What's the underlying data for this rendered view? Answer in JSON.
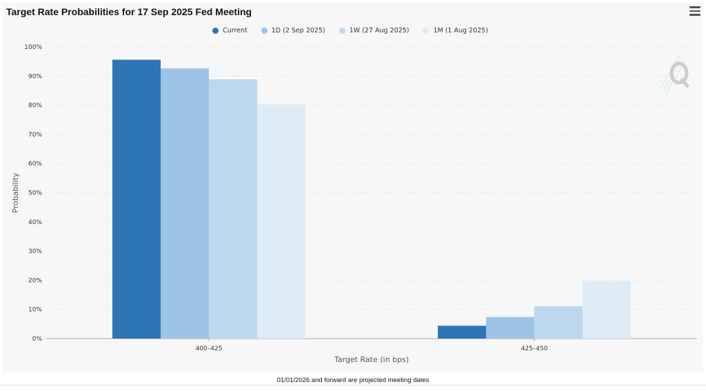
{
  "title": "Target Rate Probabilities for 17 Sep 2025 Fed Meeting",
  "footer": "01/01/2026 and forward are projected meeting dates",
  "icons": {
    "menu": "hamburger-menu-icon",
    "watermark": "quikstrike-q-logo"
  },
  "legend": [
    {
      "label": "Current",
      "color": "#2e75b6"
    },
    {
      "label": "1D (2 Sep 2025)",
      "color": "#9dc3e6"
    },
    {
      "label": "1W (27 Aug 2025)",
      "color": "#bdd7ee"
    },
    {
      "label": "1M (1 Aug 2025)",
      "color": "#deebf7"
    }
  ],
  "chart_data": {
    "type": "bar",
    "title": "Target Rate Probabilities for 17 Sep 2025 Fed Meeting",
    "xlabel": "Target Rate (in bps)",
    "ylabel": "Probability",
    "categories": [
      "400–425",
      "425–450"
    ],
    "ylim": [
      0,
      100
    ],
    "yticks": [
      "0%",
      "10%",
      "20%",
      "30%",
      "40%",
      "50%",
      "60%",
      "70%",
      "80%",
      "90%",
      "100%"
    ],
    "grid": true,
    "legend_position": "top",
    "series": [
      {
        "name": "Current",
        "color": "#2e75b6",
        "values": [
          95.6,
          4.4
        ]
      },
      {
        "name": "1D (2 Sep 2025)",
        "color": "#9dc3e6",
        "values": [
          92.6,
          7.4
        ]
      },
      {
        "name": "1W (27 Aug 2025)",
        "color": "#bdd7ee",
        "values": [
          88.9,
          11.1
        ]
      },
      {
        "name": "1M (1 Aug 2025)",
        "color": "#deebf7",
        "values": [
          80.3,
          19.7
        ]
      }
    ]
  }
}
